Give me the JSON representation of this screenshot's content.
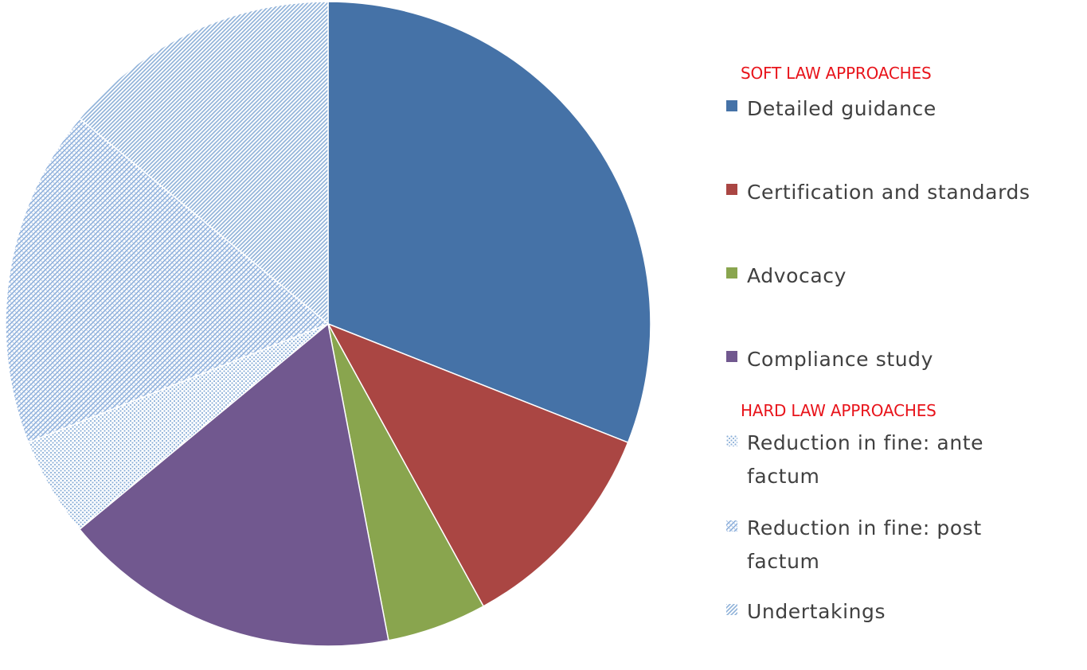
{
  "chart_data": {
    "type": "pie",
    "title": "",
    "legend_position": "right",
    "legend_groups": [
      {
        "heading": "SOFT LAW APPROACHES",
        "heading_color": "#e8141b",
        "items": [
          0,
          1,
          2,
          3
        ]
      },
      {
        "heading": "HARD LAW APPROACHES",
        "heading_color": "#e8141b",
        "items": [
          4,
          5,
          6
        ]
      }
    ],
    "slices": [
      {
        "label": "Detailed guidance",
        "value": 31,
        "color": "#4572a7",
        "pattern": "solid"
      },
      {
        "label": "Certification and standards",
        "value": 11,
        "color": "#aa4643",
        "pattern": "solid"
      },
      {
        "label": "Advocacy",
        "value": 5,
        "color": "#89a54e",
        "pattern": "solid"
      },
      {
        "label": "Compliance study",
        "value": 17,
        "color": "#71588f",
        "pattern": "solid"
      },
      {
        "label": "Reduction in fine: ante factum",
        "value": 5,
        "color": "#4572a7",
        "pattern": "dots"
      },
      {
        "label": "Reduction in fine: post factum",
        "value": 17,
        "color": "#4572a7",
        "pattern": "cross"
      },
      {
        "label": "Undertakings",
        "value": 14,
        "color": "#4572a7",
        "pattern": "diagonal"
      }
    ]
  }
}
